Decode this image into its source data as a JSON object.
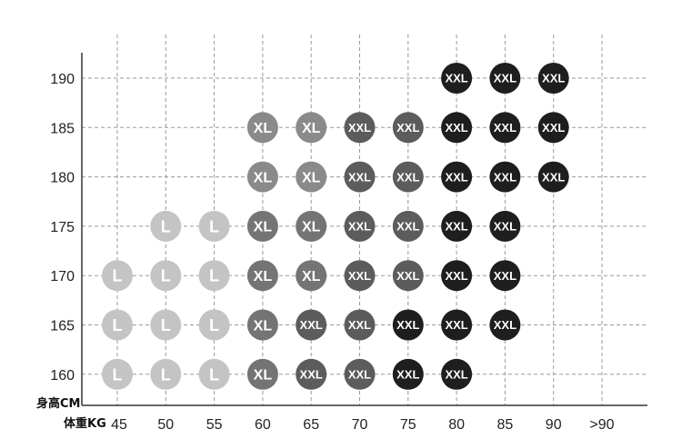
{
  "chart_data": {
    "type": "scatter",
    "title": "",
    "xlabel": "体重KG",
    "ylabel": "身高CM",
    "x_ticks": [
      "45",
      "50",
      "55",
      "60",
      "65",
      "70",
      "75",
      "80",
      "85",
      "90",
      ">90"
    ],
    "y_ticks": [
      "160",
      "165",
      "170",
      "175",
      "180",
      "185",
      "190"
    ],
    "grid": true,
    "size_colors": {
      "L": "#c4c4c4",
      "XL-light": "#8a8a8a",
      "XL": "#747474",
      "XXL-mid": "#5c5c5c",
      "XXL": "#1e1e1e"
    },
    "points": [
      {
        "weight": "90",
        "height": "190",
        "size": "XXL",
        "shade": "XXL"
      },
      {
        "weight": "85",
        "height": "190",
        "size": "XXL",
        "shade": "XXL"
      },
      {
        "weight": "80",
        "height": "190",
        "size": "XXL",
        "shade": "XXL"
      },
      {
        "weight": "60",
        "height": "185",
        "size": "XL",
        "shade": "XL-light"
      },
      {
        "weight": "65",
        "height": "185",
        "size": "XL",
        "shade": "XL-light"
      },
      {
        "weight": "70",
        "height": "185",
        "size": "XXL",
        "shade": "XXL-mid"
      },
      {
        "weight": "75",
        "height": "185",
        "size": "XXL",
        "shade": "XXL-mid"
      },
      {
        "weight": "80",
        "height": "185",
        "size": "XXL",
        "shade": "XXL"
      },
      {
        "weight": "85",
        "height": "185",
        "size": "XXL",
        "shade": "XXL"
      },
      {
        "weight": "90",
        "height": "185",
        "size": "XXL",
        "shade": "XXL"
      },
      {
        "weight": "60",
        "height": "180",
        "size": "XL",
        "shade": "XL-light"
      },
      {
        "weight": "65",
        "height": "180",
        "size": "XL",
        "shade": "XL-light"
      },
      {
        "weight": "70",
        "height": "180",
        "size": "XXL",
        "shade": "XXL-mid"
      },
      {
        "weight": "75",
        "height": "180",
        "size": "XXL",
        "shade": "XXL-mid"
      },
      {
        "weight": "80",
        "height": "180",
        "size": "XXL",
        "shade": "XXL"
      },
      {
        "weight": "85",
        "height": "180",
        "size": "XXL",
        "shade": "XXL"
      },
      {
        "weight": "90",
        "height": "180",
        "size": "XXL",
        "shade": "XXL"
      },
      {
        "weight": "50",
        "height": "175",
        "size": "L",
        "shade": "L"
      },
      {
        "weight": "55",
        "height": "175",
        "size": "L",
        "shade": "L"
      },
      {
        "weight": "60",
        "height": "175",
        "size": "XL",
        "shade": "XL"
      },
      {
        "weight": "65",
        "height": "175",
        "size": "XL",
        "shade": "XL"
      },
      {
        "weight": "70",
        "height": "175",
        "size": "XXL",
        "shade": "XXL-mid"
      },
      {
        "weight": "75",
        "height": "175",
        "size": "XXL",
        "shade": "XXL-mid"
      },
      {
        "weight": "80",
        "height": "175",
        "size": "XXL",
        "shade": "XXL"
      },
      {
        "weight": "85",
        "height": "175",
        "size": "XXL",
        "shade": "XXL"
      },
      {
        "weight": "45",
        "height": "170",
        "size": "L",
        "shade": "L"
      },
      {
        "weight": "50",
        "height": "170",
        "size": "L",
        "shade": "L"
      },
      {
        "weight": "55",
        "height": "170",
        "size": "L",
        "shade": "L"
      },
      {
        "weight": "60",
        "height": "170",
        "size": "XL",
        "shade": "XL"
      },
      {
        "weight": "65",
        "height": "170",
        "size": "XL",
        "shade": "XL"
      },
      {
        "weight": "70",
        "height": "170",
        "size": "XXL",
        "shade": "XXL-mid"
      },
      {
        "weight": "75",
        "height": "170",
        "size": "XXL",
        "shade": "XXL-mid"
      },
      {
        "weight": "80",
        "height": "170",
        "size": "XXL",
        "shade": "XXL"
      },
      {
        "weight": "85",
        "height": "170",
        "size": "XXL",
        "shade": "XXL"
      },
      {
        "weight": "45",
        "height": "165",
        "size": "L",
        "shade": "L"
      },
      {
        "weight": "50",
        "height": "165",
        "size": "L",
        "shade": "L"
      },
      {
        "weight": "55",
        "height": "165",
        "size": "L",
        "shade": "L"
      },
      {
        "weight": "60",
        "height": "165",
        "size": "XL",
        "shade": "XL"
      },
      {
        "weight": "65",
        "height": "165",
        "size": "XXL",
        "shade": "XXL-mid"
      },
      {
        "weight": "70",
        "height": "165",
        "size": "XXL",
        "shade": "XXL-mid"
      },
      {
        "weight": "75",
        "height": "165",
        "size": "XXL",
        "shade": "XXL"
      },
      {
        "weight": "80",
        "height": "165",
        "size": "XXL",
        "shade": "XXL"
      },
      {
        "weight": "85",
        "height": "165",
        "size": "XXL",
        "shade": "XXL"
      },
      {
        "weight": "45",
        "height": "160",
        "size": "L",
        "shade": "L"
      },
      {
        "weight": "50",
        "height": "160",
        "size": "L",
        "shade": "L"
      },
      {
        "weight": "55",
        "height": "160",
        "size": "L",
        "shade": "L"
      },
      {
        "weight": "60",
        "height": "160",
        "size": "XL",
        "shade": "XL"
      },
      {
        "weight": "65",
        "height": "160",
        "size": "XXL",
        "shade": "XXL-mid"
      },
      {
        "weight": "70",
        "height": "160",
        "size": "XXL",
        "shade": "XXL-mid"
      },
      {
        "weight": "75",
        "height": "160",
        "size": "XXL",
        "shade": "XXL"
      },
      {
        "weight": "80",
        "height": "160",
        "size": "XXL",
        "shade": "XXL"
      }
    ]
  }
}
